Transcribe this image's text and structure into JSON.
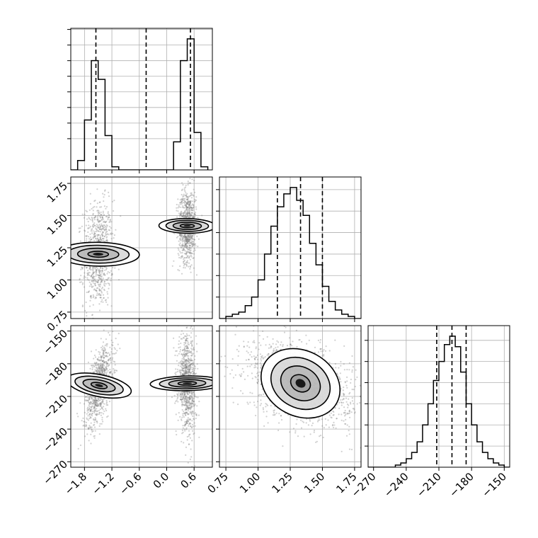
{
  "chart_data": {
    "type": "corner",
    "title": "",
    "grid": true,
    "parameters": [
      {
        "name": "",
        "lim": [
          -2.1,
          1.0
        ],
        "ticks": [
          -1.8,
          -1.2,
          -0.6,
          0.0,
          0.6
        ],
        "tick_labels": [
          "−1.8",
          "−1.2",
          "−0.6",
          "0.0",
          "0.6"
        ]
      },
      {
        "name": "",
        "lim": [
          0.7,
          1.8
        ],
        "ticks": [
          0.75,
          1.0,
          1.25,
          1.5,
          1.75
        ],
        "tick_labels": [
          "0.75",
          "1.00",
          "1.25",
          "1.50",
          "1.75"
        ]
      },
      {
        "name": "",
        "lim": [
          -275,
          -145
        ],
        "ticks": [
          -270,
          -240,
          -210,
          -180,
          -150
        ],
        "tick_labels": [
          "−270",
          "−240",
          "−210",
          "−180",
          "−150"
        ]
      }
    ],
    "histograms": [
      {
        "param": 0,
        "bin_edges": [
          -2.1,
          -1.95,
          -1.8,
          -1.65,
          -1.5,
          -1.35,
          -1.2,
          -1.05,
          -0.9,
          -0.75,
          -0.6,
          -0.45,
          -0.3,
          -0.15,
          0.0,
          0.15,
          0.3,
          0.45,
          0.6,
          0.75,
          0.9
        ],
        "counts": [
          0,
          3,
          16,
          35,
          29,
          11,
          1,
          0,
          0,
          0,
          0,
          0,
          0,
          0,
          0,
          9,
          35,
          42,
          12,
          1
        ],
        "quantiles": [
          -1.55,
          -0.45,
          0.52
        ]
      },
      {
        "param": 1,
        "bin_edges": [
          0.7,
          0.75,
          0.8,
          0.85,
          0.9,
          0.95,
          1.0,
          1.05,
          1.1,
          1.15,
          1.2,
          1.25,
          1.3,
          1.35,
          1.4,
          1.45,
          1.5,
          1.55,
          1.6,
          1.65,
          1.7,
          1.75,
          1.8
        ],
        "counts": [
          0,
          1,
          2,
          3,
          6,
          10,
          18,
          30,
          43,
          52,
          58,
          61,
          55,
          48,
          35,
          25,
          15,
          8,
          4,
          2,
          1,
          0
        ],
        "quantiles": [
          1.15,
          1.33,
          1.5
        ]
      },
      {
        "param": 2,
        "bin_edges": [
          -275,
          -270,
          -265,
          -260,
          -255,
          -250,
          -245,
          -240,
          -235,
          -230,
          -225,
          -220,
          -215,
          -210,
          -205,
          -200,
          -195,
          -190,
          -185,
          -180,
          -175,
          -170,
          -165,
          -160,
          -155,
          -150,
          -145
        ],
        "counts": [
          0,
          0,
          0,
          0,
          0,
          1,
          2,
          4,
          7,
          12,
          20,
          30,
          41,
          50,
          58,
          62,
          57,
          45,
          30,
          20,
          12,
          7,
          4,
          2,
          1,
          0
        ],
        "quantiles": [
          -212,
          -198,
          -185
        ]
      }
    ],
    "scatter_2d": [
      {
        "x_param": 0,
        "y_param": 1,
        "modes": [
          {
            "x": -1.5,
            "y": 1.2,
            "sx": 0.13,
            "sy": 0.16,
            "rho": 0.05
          },
          {
            "x": 0.45,
            "y": 1.42,
            "sx": 0.08,
            "sy": 0.11,
            "rho": 0.05
          }
        ]
      },
      {
        "x_param": 0,
        "y_param": 2,
        "modes": [
          {
            "x": -1.48,
            "y": -200,
            "sx": 0.12,
            "sy": 15,
            "rho": 0.55
          },
          {
            "x": 0.45,
            "y": -198,
            "sx": 0.08,
            "sy": 17,
            "rho": -0.1
          }
        ]
      },
      {
        "x_param": 1,
        "y_param": 2,
        "modes": [
          {
            "x": 1.33,
            "y": -198,
            "sx": 0.16,
            "sy": 15,
            "rho": -0.35
          }
        ]
      }
    ],
    "contour_levels": [
      0.5,
      1.0,
      1.5,
      2.0
    ],
    "colors": {
      "line": "#000000",
      "grid": "#b0b0b0",
      "points": "#7a7a7a",
      "fill": "#000000"
    }
  }
}
